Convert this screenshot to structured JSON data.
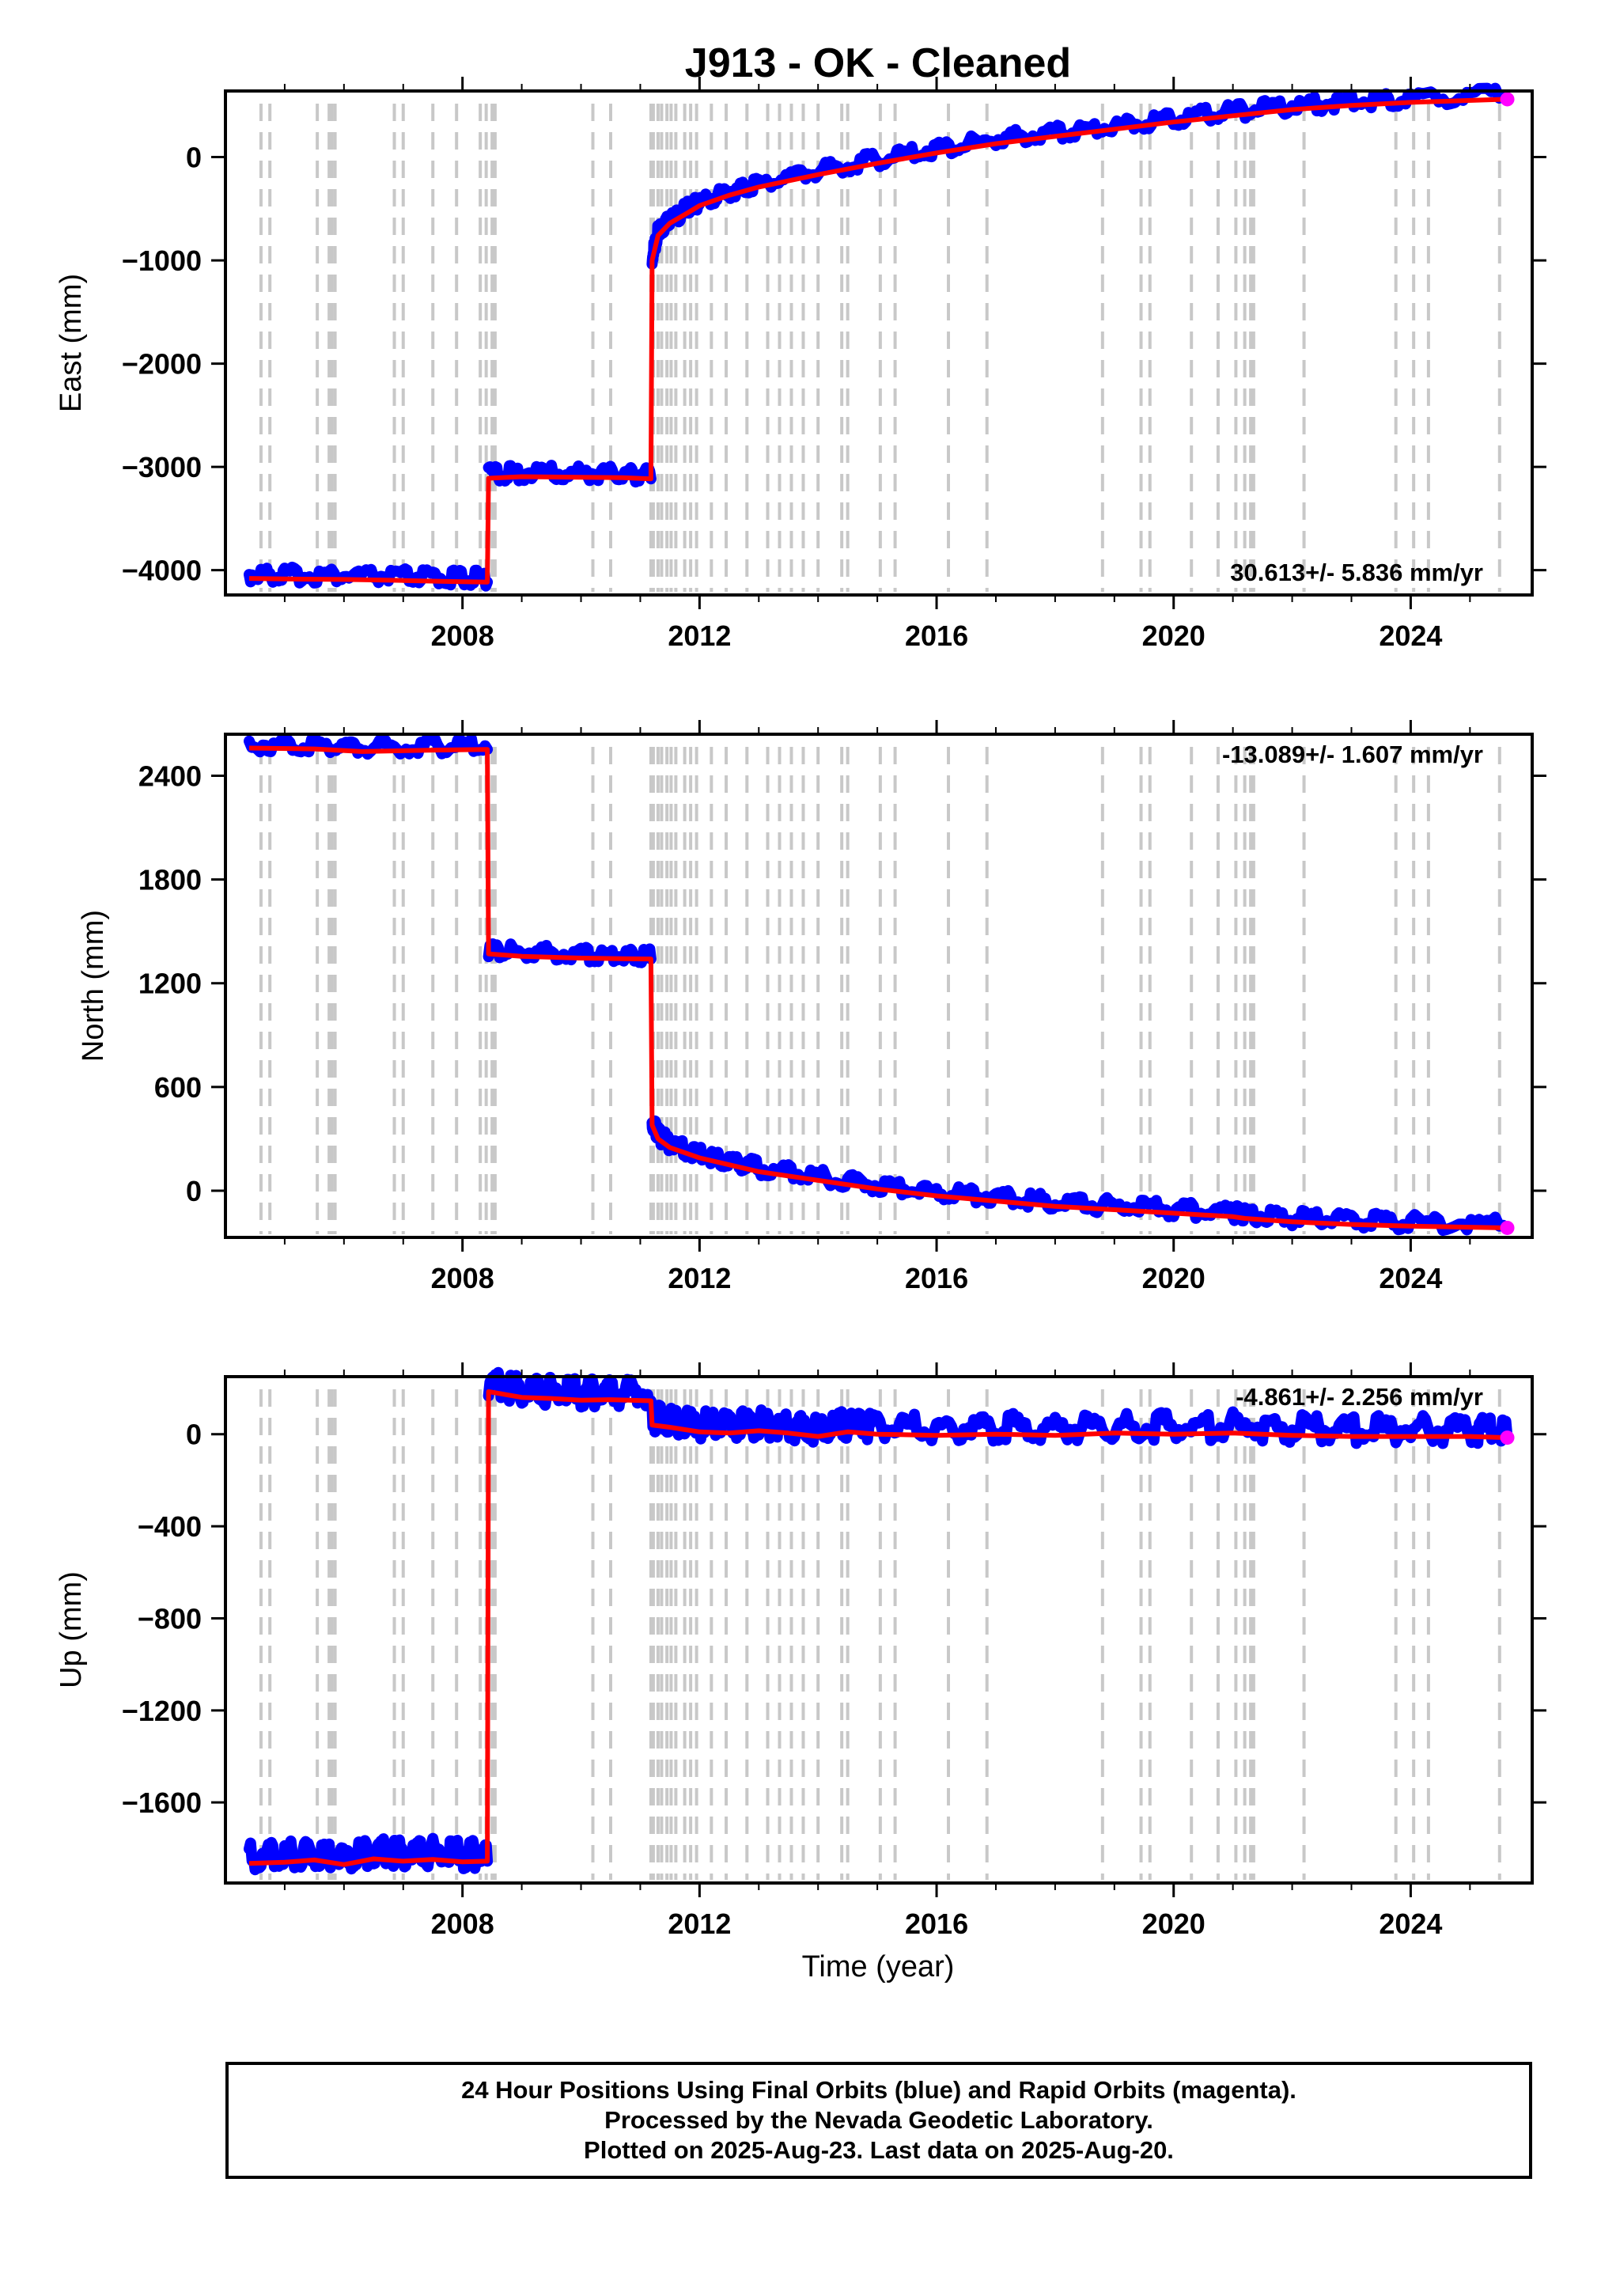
{
  "title": "J913  - OK - Cleaned",
  "footer": {
    "line1": "24 Hour Positions Using Final Orbits (blue) and Rapid Orbits (magenta).",
    "line2": "Processed by the Nevada Geodetic Laboratory.",
    "line3": "Plotted on 2025-Aug-23. Last data on 2025-Aug-20."
  },
  "colors": {
    "final_orbits": "#0000ff",
    "rapid_orbits": "#ff00ff",
    "model": "#ff0000",
    "event_lines": "#c8c8c8"
  },
  "chart_data": [
    {
      "type": "scatter",
      "panel": "east",
      "ylabel": "East (mm)",
      "xlabel": "",
      "xlim": [
        2004.0,
        2026.05
      ],
      "ylim": [
        -4240,
        640
      ],
      "xticks": [
        "2008",
        "2012",
        "2016",
        "2020",
        "2024"
      ],
      "yticks": [
        "0",
        "−1000",
        "−2000",
        "−3000",
        "−4000"
      ],
      "grid": false,
      "rate_label": "30.613+/- 5.836 mm/yr",
      "rate_position": "bottom-right",
      "series": [
        {
          "x": [
            2004.4,
            2005.0,
            2006.0,
            2007.0,
            2007.8,
            2008.42
          ],
          "y": [
            -4080,
            -4085,
            -4090,
            -4100,
            -4110,
            -4115
          ]
        },
        {
          "x": [
            2008.44,
            2009.0,
            2010.0,
            2010.7,
            2011.18
          ],
          "y": [
            -3110,
            -3095,
            -3100,
            -3105,
            -3115
          ]
        },
        {
          "x": [
            2011.2,
            2011.3,
            2011.5,
            2011.8,
            2012.0,
            2012.5,
            2013.0,
            2014.0,
            2015.0,
            2016.0,
            2017.0,
            2018.0,
            2019.0,
            2020.0,
            2021.0,
            2022.0,
            2023.0,
            2024.0,
            2025.63
          ],
          "y": [
            -1000,
            -760,
            -640,
            -540,
            -470,
            -370,
            -290,
            -170,
            -60,
            40,
            130,
            200,
            270,
            340,
            400,
            460,
            500,
            530,
            560
          ]
        }
      ]
    },
    {
      "type": "scatter",
      "panel": "north",
      "ylabel": "North (mm)",
      "xlabel": "",
      "xlim": [
        2004.0,
        2026.05
      ],
      "ylim": [
        -270,
        2640
      ],
      "xticks": [
        "2008",
        "2012",
        "2016",
        "2020",
        "2024"
      ],
      "yticks": [
        "2400",
        "1800",
        "1200",
        "600",
        "0"
      ],
      "grid": false,
      "rate_label": "-13.089+/- 1.607 mm/yr",
      "rate_position": "top-right",
      "series": [
        {
          "x": [
            2004.4,
            2005.5,
            2006.3,
            2007.5,
            2008.42
          ],
          "y": [
            2560,
            2555,
            2540,
            2548,
            2552
          ]
        },
        {
          "x": [
            2008.44,
            2009.0,
            2010.0,
            2010.7,
            2011.18
          ],
          "y": [
            1370,
            1355,
            1345,
            1342,
            1340
          ]
        },
        {
          "x": [
            2011.2,
            2011.3,
            2011.5,
            2012.0,
            2012.5,
            2013.0,
            2014.0,
            2015.0,
            2016.0,
            2017.0,
            2018.0,
            2019.0,
            2020.0,
            2021.0,
            2021.2,
            2022.0,
            2023.0,
            2024.0,
            2025.63
          ],
          "y": [
            380,
            300,
            250,
            190,
            150,
            110,
            60,
            10,
            -30,
            -60,
            -90,
            -110,
            -130,
            -150,
            -160,
            -180,
            -195,
            -205,
            -215
          ]
        }
      ]
    },
    {
      "type": "scatter",
      "panel": "up",
      "ylabel": "Up (mm)",
      "xlabel": "Time (year)",
      "xlim": [
        2004.0,
        2026.05
      ],
      "ylim": [
        -1950,
        250
      ],
      "xticks": [
        "2008",
        "2012",
        "2016",
        "2020",
        "2024"
      ],
      "yticks": [
        "0",
        "−400",
        "−800",
        "−1200",
        "−1600"
      ],
      "grid": false,
      "rate_label": "-4.861+/- 2.256 mm/yr",
      "rate_position": "top-right",
      "series": [
        {
          "x": [
            2004.4,
            2005.0,
            2005.5,
            2006.0,
            2006.5,
            2007.0,
            2007.5,
            2008.0,
            2008.42
          ],
          "y": [
            -1865,
            -1860,
            -1850,
            -1870,
            -1845,
            -1855,
            -1848,
            -1858,
            -1855
          ]
        },
        {
          "x": [
            2008.44,
            2009.0,
            2009.5,
            2010.0,
            2010.5,
            2011.18
          ],
          "y": [
            185,
            160,
            155,
            148,
            150,
            145
          ]
        },
        {
          "x": [
            2011.2,
            2011.5,
            2012.0,
            2012.5,
            2013.0,
            2013.5,
            2014.0,
            2014.5,
            2015.0,
            2016.0,
            2017.0,
            2018.0,
            2019.0,
            2020.0,
            2021.0,
            2022.0,
            2023.0,
            2024.0,
            2025.0,
            2025.63
          ],
          "y": [
            40,
            30,
            10,
            5,
            15,
            5,
            -10,
            10,
            0,
            -5,
            0,
            -5,
            5,
            0,
            5,
            -5,
            -10,
            -10,
            -10,
            -15
          ]
        }
      ]
    }
  ],
  "event_line_years": [
    2004.6,
    2004.75,
    2005.55,
    2005.75,
    2005.8,
    2005.85,
    2006.85,
    2007.0,
    2007.5,
    2007.9,
    2008.3,
    2008.4,
    2008.5,
    2008.55,
    2010.2,
    2010.5,
    2011.18,
    2011.22,
    2011.3,
    2011.36,
    2011.45,
    2011.52,
    2011.6,
    2011.75,
    2011.85,
    2011.95,
    2012.2,
    2012.45,
    2012.8,
    2013.15,
    2013.35,
    2013.55,
    2013.75,
    2014.0,
    2014.4,
    2014.5,
    2015.05,
    2015.3,
    2016.2,
    2016.85,
    2018.8,
    2019.45,
    2019.6,
    2020.3,
    2020.75,
    2021.05,
    2021.2,
    2021.3,
    2021.35,
    2022.2,
    2023.75,
    2024.05,
    2024.3,
    2025.5
  ]
}
